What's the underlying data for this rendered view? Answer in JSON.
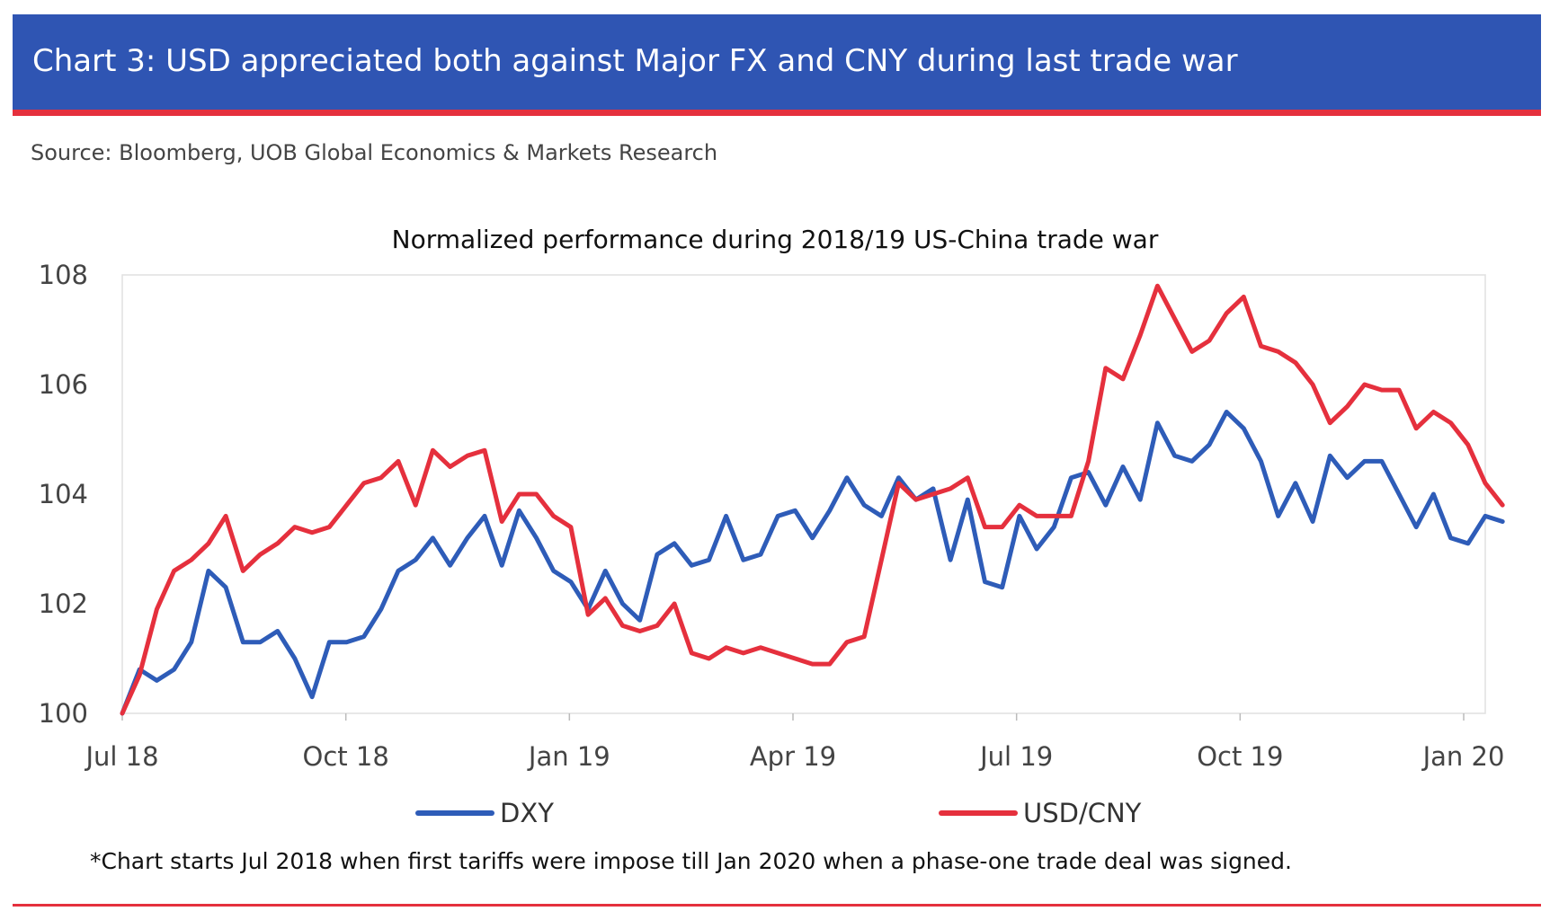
{
  "header": {
    "title": "Chart 3: USD appreciated both against Major FX and CNY during last trade war",
    "source": "Source: Bloomberg, UOB Global Economics & Markets Research"
  },
  "footnote": "*Chart starts Jul 2018 when first tariffs were impose till Jan 2020 when a phase-one trade deal was signed.",
  "colors": {
    "banner": "#2f55b3",
    "accent": "#e5303d",
    "dxy": "#2e5cb8",
    "usdcny": "#e5303d"
  },
  "chart_data": {
    "type": "line",
    "title": "Normalized performance during 2018/19 US-China trade war",
    "xlabel": "",
    "ylabel": "",
    "x_tick_labels": [
      "Jul 18",
      "Oct 18",
      "Jan 19",
      "Apr 19",
      "Jul 19",
      "Oct 19",
      "Jan 20"
    ],
    "y_tick_labels": [
      "100",
      "102",
      "104",
      "106",
      "108"
    ],
    "ylim": [
      100,
      108
    ],
    "xlim": [
      0,
      79
    ],
    "x_unit": "weeks (approx.) from Jul 2018",
    "grid": false,
    "legend": "bottom",
    "series": [
      {
        "name": "DXY",
        "values": [
          100.0,
          100.8,
          100.6,
          100.8,
          101.3,
          102.6,
          102.3,
          101.3,
          101.3,
          101.5,
          101.0,
          100.3,
          101.3,
          101.3,
          101.4,
          101.9,
          102.6,
          102.8,
          103.2,
          102.7,
          103.2,
          103.6,
          102.7,
          103.7,
          103.2,
          102.6,
          102.4,
          101.9,
          102.6,
          102.0,
          101.7,
          102.9,
          103.1,
          102.7,
          102.8,
          103.6,
          102.8,
          102.9,
          103.6,
          103.7,
          103.2,
          103.7,
          104.3,
          103.8,
          103.6,
          104.3,
          103.9,
          104.1,
          102.8,
          103.9,
          102.4,
          102.3,
          103.6,
          103.0,
          103.4,
          104.3,
          104.4,
          103.8,
          104.5,
          103.9,
          105.3,
          104.7,
          104.6,
          104.9,
          105.5,
          105.2,
          104.6,
          103.6,
          104.2,
          103.5,
          104.7,
          104.3,
          104.6,
          104.6,
          104.0,
          103.4,
          104.0,
          103.2,
          103.1,
          103.6,
          103.5
        ]
      },
      {
        "name": "USD/CNY",
        "values": [
          100.0,
          100.7,
          101.9,
          102.6,
          102.8,
          103.1,
          103.6,
          102.6,
          102.9,
          103.1,
          103.4,
          103.3,
          103.4,
          103.8,
          104.2,
          104.3,
          104.6,
          103.8,
          104.8,
          104.5,
          104.7,
          104.8,
          103.5,
          104.0,
          104.0,
          103.6,
          103.4,
          101.8,
          102.1,
          101.6,
          101.5,
          101.6,
          102.0,
          101.1,
          101.0,
          101.2,
          101.1,
          101.2,
          101.1,
          101.0,
          100.9,
          100.9,
          101.3,
          101.4,
          102.8,
          104.2,
          103.9,
          104.0,
          104.1,
          104.3,
          103.4,
          103.4,
          103.8,
          103.6,
          103.6,
          103.6,
          104.6,
          106.3,
          106.1,
          106.9,
          107.8,
          107.2,
          106.6,
          106.8,
          107.3,
          107.6,
          106.7,
          106.6,
          106.4,
          106.0,
          105.3,
          105.6,
          106.0,
          105.9,
          105.9,
          105.2,
          105.5,
          105.3,
          104.9,
          104.2,
          103.8
        ]
      }
    ]
  }
}
